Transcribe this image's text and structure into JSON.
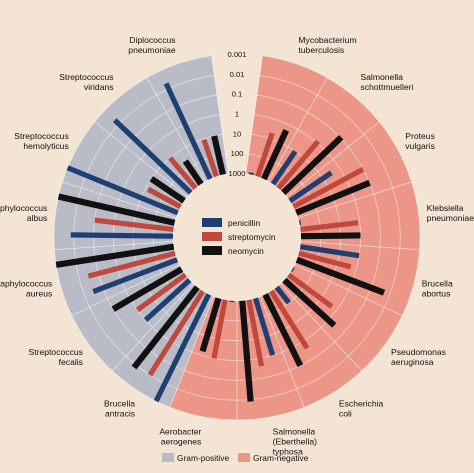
{
  "chart_data": {
    "type": "radial-bar",
    "scale": "log",
    "r_ticks": [
      "1000",
      "100",
      "10",
      "1",
      "0.1",
      "0.01",
      "0.001"
    ],
    "r_tick_values": [
      1000,
      100,
      10,
      1,
      0.1,
      0.01,
      0.001
    ],
    "r_range": [
      1000,
      0.001
    ],
    "series": [
      {
        "name": "penicillin",
        "color": "#1f3f73"
      },
      {
        "name": "streptomycin",
        "color": "#c0483d"
      },
      {
        "name": "neomycin",
        "color": "#111111"
      }
    ],
    "groups": [
      {
        "name": "Gram-positive",
        "color": "#b9bcc6"
      },
      {
        "name": "Gram-negative",
        "color": "#ec9688"
      }
    ],
    "bacteria": [
      {
        "lines": [
          "Mycobacterium",
          "tuberculosis"
        ],
        "group": 1,
        "values": [
          800,
          5,
          2
        ]
      },
      {
        "lines": [
          "Salmonella",
          "schottmuelleri"
        ],
        "group": 1,
        "values": [
          10,
          0.8,
          0.09
        ]
      },
      {
        "lines": [
          "Proteus",
          "vulgaris"
        ],
        "group": 1,
        "values": [
          3,
          0.1,
          0.1
        ]
      },
      {
        "lines": [
          "Klebsiella",
          "pneumoniae"
        ],
        "group": 1,
        "values": [
          850,
          1.2,
          1
        ]
      },
      {
        "lines": [
          "Brucella",
          "abortus"
        ],
        "group": 1,
        "values": [
          1,
          2,
          0.02
        ]
      },
      {
        "lines": [
          "Pseudomonas",
          "aeruginosa"
        ],
        "group": 1,
        "values": [
          850,
          2,
          0.4
        ]
      },
      {
        "lines": [
          "Escherichia",
          "coli"
        ],
        "group": 1,
        "values": [
          100,
          0.4,
          0.1
        ]
      },
      {
        "lines": [
          "Salmonella",
          "(Eberthella)",
          "typhosa"
        ],
        "group": 1,
        "values": [
          1,
          0.4,
          0.008
        ]
      },
      {
        "lines": [
          "Aerobacter",
          "aerogenes"
        ],
        "group": 1,
        "values": [
          870,
          1,
          1.6
        ]
      },
      {
        "lines": [
          "Brucella",
          "antracis"
        ],
        "group": 0,
        "values": [
          0.001,
          0.01,
          0.007
        ]
      },
      {
        "lines": [
          "Streptococcus",
          "fecalis"
        ],
        "group": 0,
        "values": [
          1,
          1,
          0.1
        ]
      },
      {
        "lines": [
          "Staphylococcus",
          "aureus"
        ],
        "group": 0,
        "values": [
          0.03,
          0.03,
          0.001
        ]
      },
      {
        "lines": [
          "Staphylococcus",
          "albus"
        ],
        "group": 0,
        "values": [
          0.007,
          0.1,
          0.001
        ]
      },
      {
        "lines": [
          "Streptococcus",
          "hemolyticus"
        ],
        "group": 0,
        "values": [
          0.001,
          14,
          10
        ]
      },
      {
        "lines": [
          "Streptococcus",
          "viridans"
        ],
        "group": 0,
        "values": [
          0.005,
          10,
          40
        ]
      },
      {
        "lines": [
          "Diplococcus",
          "pneumoniae"
        ],
        "group": 0,
        "values": [
          0.005,
          11,
          10
        ]
      }
    ]
  }
}
